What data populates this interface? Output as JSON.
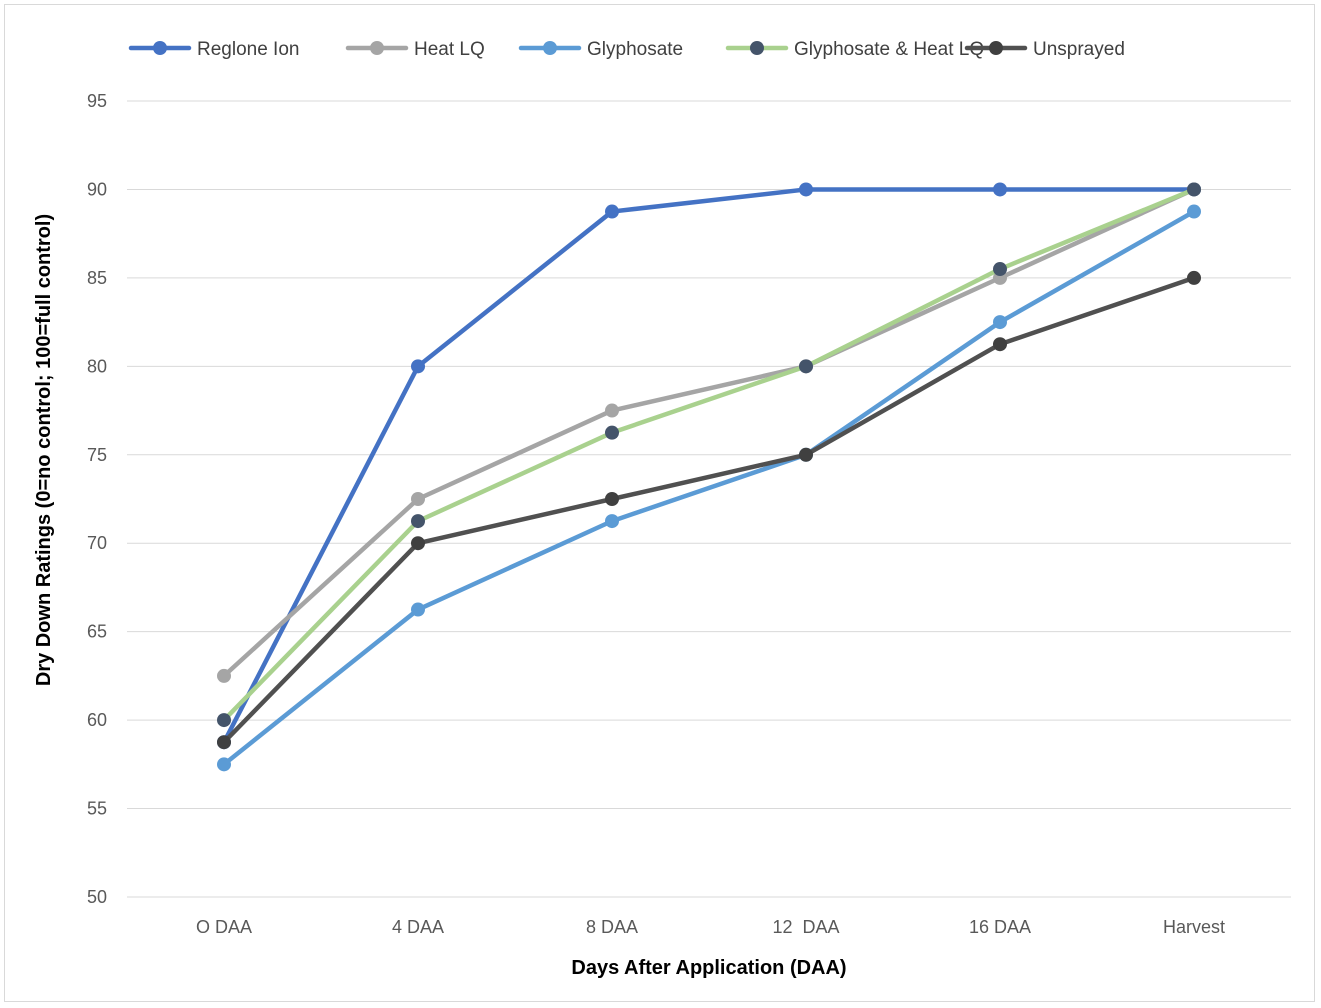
{
  "chart_data": {
    "type": "line",
    "title": "",
    "xlabel": "Days After Application (DAA)",
    "ylabel": "Dry Down Ratings (0=no control; 100=full control)",
    "categories": [
      "O DAA",
      "4 DAA",
      "8 DAA",
      "12  DAA",
      "16 DAA",
      "Harvest"
    ],
    "ylim": [
      50,
      95
    ],
    "yticks": [
      50,
      55,
      60,
      65,
      70,
      75,
      80,
      85,
      90,
      95
    ],
    "grid": "horizontal",
    "legend_position": "top",
    "series": [
      {
        "name": "Reglone Ion",
        "line_color": "#4472c4",
        "marker_color": "#4472c4",
        "values": [
          58.75,
          80,
          88.75,
          90,
          90,
          90
        ]
      },
      {
        "name": "Heat LQ",
        "line_color": "#a5a5a5",
        "marker_color": "#a5a5a5",
        "values": [
          62.5,
          72.5,
          77.5,
          80,
          85,
          90
        ]
      },
      {
        "name": "Glyphosate",
        "line_color": "#5b9bd5",
        "marker_color": "#5b9bd5",
        "values": [
          57.5,
          66.25,
          71.25,
          75,
          82.5,
          88.75
        ]
      },
      {
        "name": "Glyphosate & Heat LQ",
        "line_color": "#a9d18e",
        "marker_color": "#44546a",
        "values": [
          60,
          71.25,
          76.25,
          80,
          85.5,
          90
        ]
      },
      {
        "name": "Unsprayed",
        "line_color": "#505050",
        "marker_color": "#404040",
        "values": [
          58.75,
          70,
          72.5,
          75,
          81.25,
          85
        ]
      }
    ]
  }
}
